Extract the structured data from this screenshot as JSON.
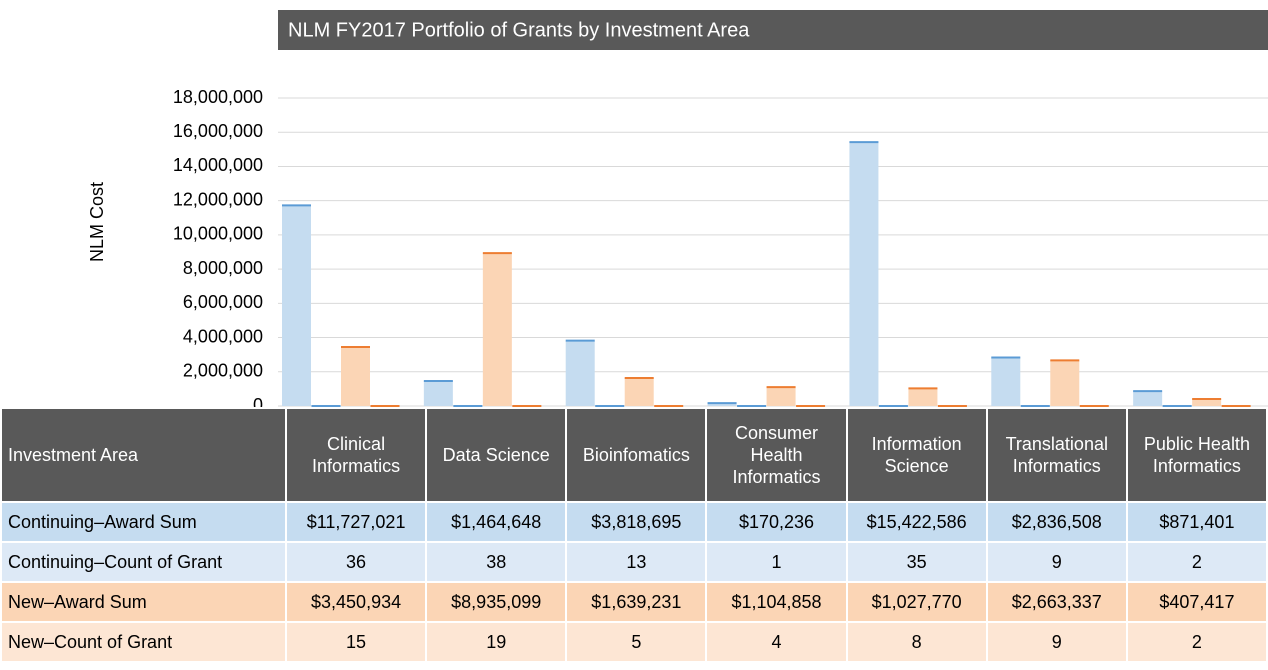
{
  "chart_data": {
    "type": "bar",
    "title": "NLM FY2017 Portfolio of Grants by Investment Area",
    "y_label": "NLM Cost",
    "table_header": "Investment Area",
    "categories": [
      "Clinical Informatics",
      "Data Science",
      "Bioinfomatics",
      "Consumer Health Informatics",
      "Information Science",
      "Translational Informatics",
      "Public Health Informatics"
    ],
    "series": [
      {
        "name": "Continuing–Award Sum",
        "color": "#c5dcf0",
        "edge": "#5b9bd5",
        "row_color": "#c5dcf0",
        "values": [
          11727021,
          1464648,
          3818695,
          170236,
          15422586,
          2836508,
          871401
        ],
        "value_labels": [
          "$11,727,021",
          "$1,464,648",
          "$3,818,695",
          "$170,236",
          "$15,422,586",
          "$2,836,508",
          "$871,401"
        ]
      },
      {
        "name": "Continuing–Count of Grant",
        "color": "#c5dcf0",
        "edge": "#5b9bd5",
        "row_color": "#dde9f6",
        "values": [
          36,
          38,
          13,
          1,
          35,
          9,
          2
        ]
      },
      {
        "name": "New–Award Sum",
        "color": "#fbd5b5",
        "edge": "#ed7d31",
        "row_color": "#fbd5b5",
        "values": [
          3450934,
          8935099,
          1639231,
          1104858,
          1027770,
          2663337,
          407417
        ],
        "value_labels": [
          "$3,450,934",
          "$8,935,099",
          "$1,639,231",
          "$1,104,858",
          "$1,027,770",
          "$2,663,337",
          "$407,417"
        ]
      },
      {
        "name": "New–Count of Grant",
        "color": "#fbd5b5",
        "edge": "#ed7d31",
        "row_color": "#fde6d4",
        "values": [
          15,
          19,
          5,
          4,
          8,
          9,
          2
        ]
      }
    ],
    "ylim": [
      0,
      18000000
    ],
    "yticks": [
      0,
      {
        "value": 2000000,
        "label": "2,000,000"
      },
      {
        "value": 4000000,
        "label": "4,000,000"
      },
      {
        "value": 6000000,
        "label": "6,000,000"
      },
      {
        "value": 8000000,
        "label": "8,000,000"
      },
      {
        "value": 10000000,
        "label": "10,000,000"
      },
      {
        "value": 12000000,
        "label": "12,000,000"
      },
      {
        "value": 14000000,
        "label": "14,000,000"
      },
      {
        "value": 16000000,
        "label": "16,000,000"
      },
      {
        "value": 18000000,
        "label": "18,000,000"
      }
    ],
    "grid": true
  }
}
